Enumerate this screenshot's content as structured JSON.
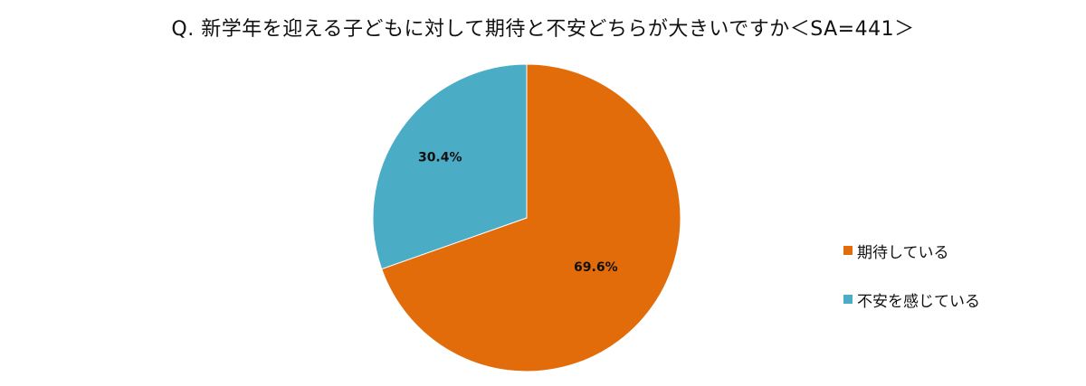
{
  "chart_data": {
    "type": "pie",
    "title": "Q. 新学年を迎える子どもに対して期待と不安どちらが大きいですか＜SA=441＞",
    "slices": [
      {
        "label": "期待している",
        "value": 69.6,
        "display": "69.6%",
        "color": "#E36C0A"
      },
      {
        "label": "不安を感じている",
        "value": 30.4,
        "display": "30.4%",
        "color": "#4BACC6"
      }
    ],
    "start_angle_deg": 0,
    "direction": "clockwise",
    "legend_position": "right"
  }
}
